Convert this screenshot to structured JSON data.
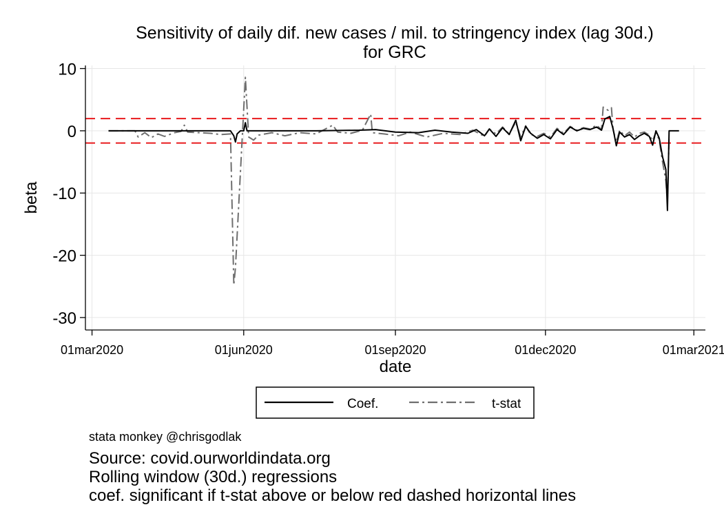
{
  "chart_data": {
    "type": "line",
    "title_line1": "Sensitivity of daily dif. new cases / mil. to stringency index (lag 30d.)",
    "title_line2": "for GRC",
    "xlabel": "date",
    "ylabel": "beta",
    "xlim": [
      "2020-02-26",
      "2021-03-08"
    ],
    "ylim": [
      -32,
      10.5
    ],
    "x_ticks": [
      "01mar2020",
      "01jun2020",
      "01sep2020",
      "01dec2020",
      "01mar2021"
    ],
    "x_tick_dates": [
      "2020-03-01",
      "2020-06-01",
      "2020-09-01",
      "2020-12-01",
      "2021-03-01"
    ],
    "y_ticks": [
      10,
      0,
      -10,
      -20,
      -30
    ],
    "grid": true,
    "threshold_lines": [
      1.96,
      -1.96
    ],
    "threshold_color": "#e8191c",
    "legend_position": "bottom",
    "series": [
      {
        "name": "Coef.",
        "color": "#000000",
        "style": "solid",
        "points": [
          [
            "2020-03-11",
            0
          ],
          [
            "2020-05-10",
            0
          ],
          [
            "2020-05-24",
            0
          ],
          [
            "2020-05-26",
            -0.8
          ],
          [
            "2020-05-27",
            -1.8
          ],
          [
            "2020-05-28",
            -0.5
          ],
          [
            "2020-05-30",
            0
          ],
          [
            "2020-06-01",
            0
          ],
          [
            "2020-06-02",
            1.3
          ],
          [
            "2020-06-03",
            0
          ],
          [
            "2020-07-15",
            0
          ],
          [
            "2020-08-10",
            0.1
          ],
          [
            "2020-08-20",
            0.2
          ],
          [
            "2020-09-01",
            -0.2
          ],
          [
            "2020-09-15",
            -0.3
          ],
          [
            "2020-09-25",
            0.1
          ],
          [
            "2020-10-05",
            -0.2
          ],
          [
            "2020-10-15",
            -0.4
          ],
          [
            "2020-10-20",
            0.2
          ],
          [
            "2020-10-25",
            -0.8
          ],
          [
            "2020-10-28",
            0.3
          ],
          [
            "2020-11-01",
            -0.9
          ],
          [
            "2020-11-05",
            0.5
          ],
          [
            "2020-11-09",
            -0.6
          ],
          [
            "2020-11-13",
            1.7
          ],
          [
            "2020-11-16",
            -1.6
          ],
          [
            "2020-11-19",
            0.7
          ],
          [
            "2020-11-22",
            -0.4
          ],
          [
            "2020-11-26",
            -1.2
          ],
          [
            "2020-11-30",
            -0.6
          ],
          [
            "2020-12-04",
            -1.3
          ],
          [
            "2020-12-08",
            0.2
          ],
          [
            "2020-12-12",
            -0.6
          ],
          [
            "2020-12-16",
            0.6
          ],
          [
            "2020-12-20",
            0
          ],
          [
            "2020-12-24",
            0.4
          ],
          [
            "2020-12-28",
            0.2
          ],
          [
            "2021-01-01",
            0.6
          ],
          [
            "2021-01-04",
            0.1
          ],
          [
            "2021-01-06",
            1.9
          ],
          [
            "2021-01-09",
            2.3
          ],
          [
            "2021-01-11",
            0.3
          ],
          [
            "2021-01-13",
            -2.4
          ],
          [
            "2021-01-15",
            -0.2
          ],
          [
            "2021-01-18",
            -1.0
          ],
          [
            "2021-01-21",
            -0.6
          ],
          [
            "2021-01-24",
            -1.4
          ],
          [
            "2021-01-27",
            -0.8
          ],
          [
            "2021-01-30",
            -0.4
          ],
          [
            "2021-02-02",
            -0.9
          ],
          [
            "2021-02-04",
            -2.3
          ],
          [
            "2021-02-06",
            0
          ],
          [
            "2021-02-08",
            -1.2
          ],
          [
            "2021-02-10",
            -4.2
          ],
          [
            "2021-02-12",
            -6.2
          ],
          [
            "2021-02-13",
            -12.8
          ],
          [
            "2021-02-14",
            0
          ],
          [
            "2021-02-20",
            0
          ]
        ]
      },
      {
        "name": "t-stat",
        "color": "#6e6e6e",
        "style": "dashdot",
        "points": [
          [
            "2020-03-11",
            0
          ],
          [
            "2020-03-27",
            0
          ],
          [
            "2020-03-29",
            -1.0
          ],
          [
            "2020-04-02",
            -0.3
          ],
          [
            "2020-04-06",
            -1.1
          ],
          [
            "2020-04-10",
            -0.5
          ],
          [
            "2020-04-14",
            -0.9
          ],
          [
            "2020-04-20",
            -0.3
          ],
          [
            "2020-04-24",
            -0.1
          ],
          [
            "2020-04-26",
            0.9
          ],
          [
            "2020-04-28",
            -0.2
          ],
          [
            "2020-05-05",
            -0.3
          ],
          [
            "2020-05-12",
            -0.4
          ],
          [
            "2020-05-18",
            -0.6
          ],
          [
            "2020-05-24",
            -0.5
          ],
          [
            "2020-05-26",
            -24.8
          ],
          [
            "2020-05-27",
            -22.0
          ],
          [
            "2020-06-02",
            8.6
          ],
          [
            "2020-06-04",
            -1.0
          ],
          [
            "2020-06-07",
            -1.5
          ],
          [
            "2020-06-10",
            -0.7
          ],
          [
            "2020-06-18",
            -0.3
          ],
          [
            "2020-06-26",
            -0.8
          ],
          [
            "2020-07-05",
            -0.3
          ],
          [
            "2020-07-15",
            -0.5
          ],
          [
            "2020-07-22",
            0.5
          ],
          [
            "2020-07-25",
            0.9
          ],
          [
            "2020-07-28",
            -0.2
          ],
          [
            "2020-08-05",
            -0.4
          ],
          [
            "2020-08-12",
            0.1
          ],
          [
            "2020-08-17",
            2.7
          ],
          [
            "2020-08-18",
            -0.3
          ],
          [
            "2020-08-25",
            -0.5
          ],
          [
            "2020-09-03",
            -0.8
          ],
          [
            "2020-09-10",
            -0.2
          ],
          [
            "2020-09-20",
            -1.0
          ],
          [
            "2020-09-30",
            -0.4
          ],
          [
            "2020-10-10",
            -0.6
          ],
          [
            "2020-10-18",
            0.1
          ],
          [
            "2020-10-25",
            -0.9
          ],
          [
            "2020-10-28",
            0.3
          ],
          [
            "2020-11-01",
            -0.5
          ],
          [
            "2020-11-05",
            0.6
          ],
          [
            "2020-11-09",
            -0.5
          ],
          [
            "2020-11-13",
            1.4
          ],
          [
            "2020-11-16",
            -1.0
          ],
          [
            "2020-11-19",
            0.8
          ],
          [
            "2020-11-22",
            -0.6
          ],
          [
            "2020-11-26",
            -0.9
          ],
          [
            "2020-11-30",
            -0.4
          ],
          [
            "2020-12-04",
            -1.0
          ],
          [
            "2020-12-08",
            0.4
          ],
          [
            "2020-12-12",
            -0.4
          ],
          [
            "2020-12-16",
            0.7
          ],
          [
            "2020-12-20",
            0.1
          ],
          [
            "2020-12-24",
            0.5
          ],
          [
            "2020-12-28",
            0.3
          ],
          [
            "2021-01-01",
            0.9
          ],
          [
            "2021-01-04",
            0.2
          ],
          [
            "2021-01-05",
            3.8
          ],
          [
            "2021-01-08",
            3.3
          ],
          [
            "2021-01-10",
            3.7
          ],
          [
            "2021-01-11",
            0.2
          ],
          [
            "2021-01-13",
            -1.8
          ],
          [
            "2021-01-15",
            0.1
          ],
          [
            "2021-01-18",
            -0.8
          ],
          [
            "2021-01-21",
            -0.2
          ],
          [
            "2021-01-24",
            -1.0
          ],
          [
            "2021-01-27",
            -0.4
          ],
          [
            "2021-01-30",
            -0.2
          ],
          [
            "2021-02-02",
            -0.7
          ],
          [
            "2021-02-04",
            -1.6
          ],
          [
            "2021-02-06",
            -0.2
          ],
          [
            "2021-02-08",
            -1.5
          ],
          [
            "2021-02-10",
            -5.0
          ],
          [
            "2021-02-12",
            -8.0
          ],
          [
            "2021-02-13",
            -11.3
          ],
          [
            "2021-02-14",
            -1.0
          ]
        ]
      }
    ]
  },
  "notes": {
    "credit": "stata monkey @chrisgodlak",
    "source_lines": [
      "Source: covid.ourworldindata.org",
      "Rolling window (30d.) regressions",
      "coef. significant if t-stat above or below red dashed horizontal lines"
    ]
  }
}
